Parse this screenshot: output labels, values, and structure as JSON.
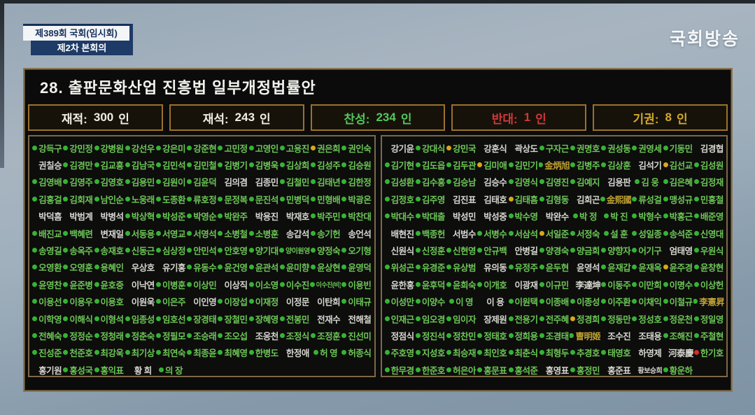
{
  "header": {
    "session_banner": "제389회 국회(임시회)",
    "meeting_banner": "제2차 본회의",
    "broadcaster": "국회방송"
  },
  "bill": {
    "title": "28. 출판문화산업 진흥법 일부개정법률안"
  },
  "stats": [
    {
      "label": "재적:",
      "value": "300",
      "unit": "인"
    },
    {
      "label": "재석:",
      "value": "243",
      "unit": "인"
    },
    {
      "label": "찬성:",
      "value": "234",
      "unit": "인"
    },
    {
      "label": "반대:",
      "value": "1",
      "unit": "인"
    },
    {
      "label": "기권:",
      "value": "8",
      "unit": "인"
    }
  ],
  "colors": {
    "yes_green": "#6cc556",
    "abstain_yellow": "#d9a718",
    "no_red": "#d62b2b",
    "absent_white": "#d6d6d0",
    "hanja_gold": "#bfa232",
    "panel_border_tan": "#8a7450"
  },
  "vote_codes": {
    "y": "yes",
    "a": "abstain",
    "n": "no",
    "x": "absent",
    "g": "yes-gold-name",
    "xh": "absent-hanja"
  },
  "panels": {
    "left": {
      "rows": [
        [
          "y:강득구",
          "y:강민정",
          "y:강병원",
          "y:강선우",
          "y:강은미",
          "y:강준현",
          "y:고민정",
          "y:고영인",
          "y:고용진",
          "a:권은희",
          "y:권인숙"
        ],
        [
          "x:권칠승",
          "y:김경만",
          "y:김교흥",
          "y:김남국",
          "y:김민석",
          "y:김민철",
          "y:김병기",
          "y:김병욱",
          "y:김상희",
          "y:김성주",
          "y:김승원"
        ],
        [
          "y:김영배",
          "y:김영주",
          "y:김영호",
          "y:김용민",
          "y:김원이",
          "y:김윤덕",
          "x:김의겸",
          "x:김종민",
          "y:김철민",
          "y:김태년",
          "y:김한정"
        ],
        [
          "y:김홍걸",
          "y:김회재",
          "y:남인순",
          "y:노웅래",
          "y:도종환",
          "y:류호정",
          "y:문정복",
          "y:문진석",
          "y:민병덕",
          "y:민형배",
          "y:박광온"
        ],
        [
          "x:박덕흠",
          "x:박범계",
          "x:박병석",
          "y:박상혁",
          "y:박성준",
          "y:박영순",
          "y:박완주",
          "x:박용진",
          "x:박재호",
          "y:박주민",
          "y:박찬대"
        ],
        [
          "y:배진교",
          "y:백혜련",
          "x:변재일",
          "y:서동용",
          "y:서영교",
          "y:서영석",
          "y:소병철",
          "y:소병훈",
          "x:송갑석",
          "y:송기헌",
          "x:송언석"
        ],
        [
          "y:송영길",
          "y:송옥주",
          "y:송재호",
          "y:신동근",
          "y:심상정",
          "y:안민석",
          "y:안호영",
          "y:양기대",
          "y:양이원영",
          "y:양정숙",
          "y:오기형"
        ],
        [
          "y:오영환",
          "y:오영훈",
          "y:용혜인",
          "x:우상호",
          "x:유기홍",
          "y:유동수",
          "y:윤건영",
          "y:윤관석",
          "y:윤미향",
          "y:윤상현",
          "y:윤영덕"
        ],
        [
          "y:윤영찬",
          "y:윤준병",
          "y:윤호중",
          "x:이낙연",
          "y:이병훈",
          "y:이상민",
          "x:이상직",
          "y:이소영",
          "y:이수진",
          "y:이수진(비)",
          "y:이용빈"
        ],
        [
          "y:이용선",
          "y:이용우",
          "y:이용호",
          "x:이원욱",
          "y:이은주",
          "x:이인영",
          "y:이장섭",
          "y:이재정",
          "x:이정문",
          "x:이탄희",
          "y:이태규"
        ],
        [
          "y:이학영",
          "y:이해식",
          "y:이형석",
          "y:임종성",
          "y:임호선",
          "y:장경태",
          "y:장철민",
          "y:장혜영",
          "y:전봉민",
          "x:전재수",
          "x:전해철"
        ],
        [
          "y:전혜숙",
          "y:정정순",
          "y:정청래",
          "y:정춘숙",
          "y:정필모",
          "y:조승래",
          "y:조오섭",
          "x:조응천",
          "y:조정식",
          "y:조정훈",
          "y:진선미"
        ],
        [
          "y:진성준",
          "y:천준호",
          "y:최강욱",
          "y:최기상",
          "y:최연숙",
          "y:최종윤",
          "y:최혜영",
          "y:한병도",
          "x:한정애",
          "y:허 영",
          "y:허종식"
        ],
        [
          "x:홍기원",
          "y:홍성국",
          "y:홍익표",
          "x:황 희",
          "y:의 장"
        ]
      ]
    },
    "right": {
      "rows": [
        [
          "x:강기윤",
          "y:강대식",
          "a:강민국",
          "x:강훈식",
          "x:곽상도",
          "y:구자근",
          "y:권명호",
          "y:권성동",
          "y:권영세",
          "y:기동민",
          "x:김경협"
        ],
        [
          "y:김기현",
          "y:김도읍",
          "y:김두관",
          "a:김미애",
          "y:김민기",
          "g:金炳旭",
          "y:김병주",
          "y:김상훈",
          "x:김석기",
          "a:김선교",
          "y:김성원"
        ],
        [
          "y:김성환",
          "y:김수흥",
          "y:김승남",
          "x:김승수",
          "y:김영식",
          "y:김영진",
          "y:김예지",
          "x:김용판",
          "y:김 웅",
          "y:김은혜",
          "y:김정재"
        ],
        [
          "y:김정호",
          "y:김주영",
          "x:김진표",
          "x:김태호",
          "a:김태흠",
          "y:김형동",
          "x:김희곤",
          "g:金熙國",
          "y:류성걸",
          "y:맹성규",
          "y:민홍철"
        ],
        [
          "y:박대수",
          "y:박대출",
          "x:박성민",
          "x:박성중",
          "y:박수영",
          "x:박완수",
          "y:박 정",
          "y:박 진",
          "y:박형수",
          "y:박홍근",
          "y:배준영"
        ],
        [
          "x:배현진",
          "y:백종헌",
          "x:서범수",
          "y:서병수",
          "y:서삼석",
          "a:서일준",
          "y:서정숙",
          "y:설 훈",
          "y:성일종",
          "y:송석준",
          "y:신영대"
        ],
        [
          "x:신원식",
          "y:신정훈",
          "y:신현영",
          "y:안규백",
          "x:안병길",
          "y:양경숙",
          "y:양금희",
          "y:양향자",
          "y:어기구",
          "x:엄태영",
          "y:우원식"
        ],
        [
          "y:위성곤",
          "y:유경준",
          "y:유상범",
          "x:유의동",
          "y:유정주",
          "y:윤두현",
          "x:윤영석",
          "y:윤재갑",
          "y:윤재옥",
          "a:윤주경",
          "y:윤창현"
        ],
        [
          "x:윤한홍",
          "y:윤후덕",
          "y:윤희숙",
          "y:이개호",
          "x:이광재",
          "y:이규민",
          "xh:李達坤",
          "y:이동주",
          "y:이만희",
          "y:이명수",
          "y:이상헌"
        ],
        [
          "y:이성만",
          "y:이양수",
          "y:이 영",
          "x:이 용",
          "y:이원택",
          "y:이종배",
          "y:이종성",
          "y:이주환",
          "y:이채익",
          "y:이철규",
          "g:李憲昇"
        ],
        [
          "y:인재근",
          "y:임오경",
          "y:임이자",
          "x:장제원",
          "y:전용기",
          "y:전주혜",
          "a:정경희",
          "y:정동만",
          "y:정성호",
          "y:정운천",
          "y:정일영"
        ],
        [
          "x:정점식",
          "y:정진석",
          "y:정찬민",
          "y:정태호",
          "y:정희용",
          "y:조경태",
          "g:曺明姬",
          "x:조수진",
          "x:조태용",
          "y:조해진",
          "y:주철현"
        ],
        [
          "y:주호영",
          "y:지성호",
          "y:최승재",
          "y:최인호",
          "y:최춘식",
          "y:최형두",
          "y:추경호",
          "y:태영호",
          "x:하영제",
          "xh:河泰慶",
          "n:한기호"
        ],
        [
          "y:한무경",
          "y:한준호",
          "y:허은아",
          "y:홍문표",
          "y:홍석준",
          "x:홍영표",
          "y:홍정민",
          "x:홍준표",
          "x:황보승희",
          "y:황운하"
        ]
      ]
    }
  }
}
